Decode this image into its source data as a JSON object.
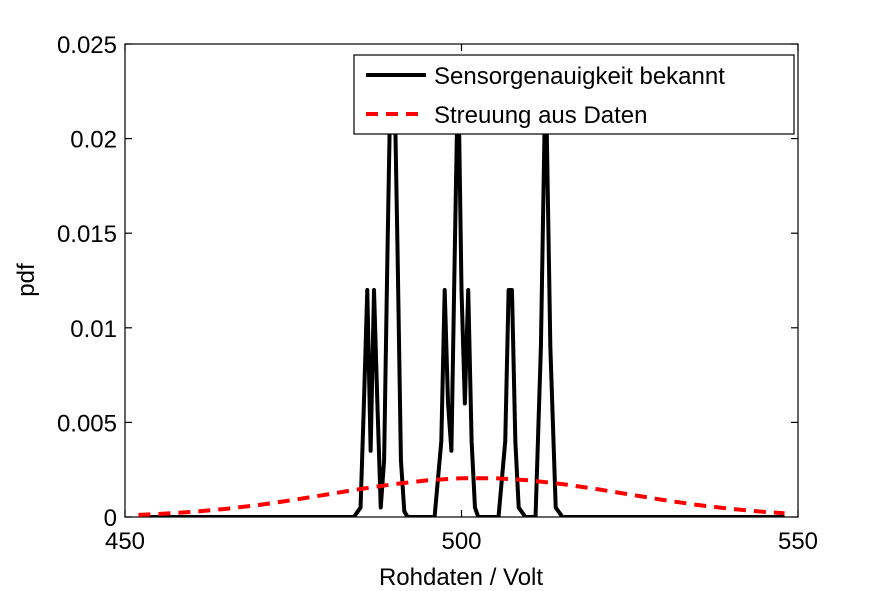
{
  "chart_data": {
    "type": "line",
    "xlabel": "Rohdaten / Volt",
    "ylabel": "pdf",
    "xlim": [
      450,
      550
    ],
    "ylim": [
      0,
      0.025
    ],
    "xticks": [
      450,
      500,
      550
    ],
    "xtick_labels": [
      "450",
      "500",
      "550"
    ],
    "yticks": [
      0,
      0.005,
      0.01,
      0.015,
      0.02,
      0.025
    ],
    "ytick_labels": [
      "0",
      "0.005",
      "0.01",
      "0.015",
      "0.02",
      "0.025"
    ],
    "grid": false,
    "legend_position": "top-right",
    "series": [
      {
        "name": "Sensorgenauigkeit bekannt",
        "color": "#000000",
        "style": "solid",
        "x": [
          452,
          484.0,
          485.0,
          485.5,
          486.0,
          486.5,
          487.0,
          487.5,
          488.0,
          488.5,
          489.0,
          489.5,
          490.0,
          490.5,
          491.0,
          491.5,
          492.0,
          496.0,
          497.0,
          497.5,
          498.0,
          498.5,
          499.0,
          499.5,
          500.0,
          500.5,
          501.0,
          501.5,
          502.0,
          502.5,
          503.0,
          505.5,
          506.5,
          507.0,
          507.5,
          508.0,
          508.5,
          509.5,
          511.0,
          511.8,
          512.5,
          513.2,
          514.0,
          515.0,
          548
        ],
        "y": [
          0,
          0,
          0.0005,
          0.006,
          0.012,
          0.0035,
          0.012,
          0.006,
          0.0005,
          0.003,
          0.014,
          0.024,
          0.024,
          0.014,
          0.003,
          0.0003,
          0,
          0,
          0.004,
          0.012,
          0.006,
          0.0035,
          0.014,
          0.024,
          0.012,
          0.006,
          0.012,
          0.004,
          0.0005,
          0,
          0,
          0,
          0.004,
          0.012,
          0.012,
          0.004,
          0.0005,
          0,
          0,
          0.009,
          0.024,
          0.009,
          0.0005,
          0,
          0
        ]
      },
      {
        "name": "Streuung aus Daten",
        "color": "#ff0000",
        "style": "dashed",
        "x": [
          452,
          455,
          460,
          465,
          470,
          475,
          480,
          485,
          490,
          495,
          500,
          505,
          510,
          515,
          520,
          525,
          530,
          535,
          540,
          545,
          548
        ],
        "y": [
          0.00011,
          0.00016,
          0.00027,
          0.00043,
          0.00064,
          0.0009,
          0.00119,
          0.00148,
          0.00174,
          0.00194,
          0.00205,
          0.00205,
          0.00194,
          0.00174,
          0.00148,
          0.00119,
          0.0009,
          0.00064,
          0.00043,
          0.00027,
          0.0002
        ]
      }
    ]
  }
}
